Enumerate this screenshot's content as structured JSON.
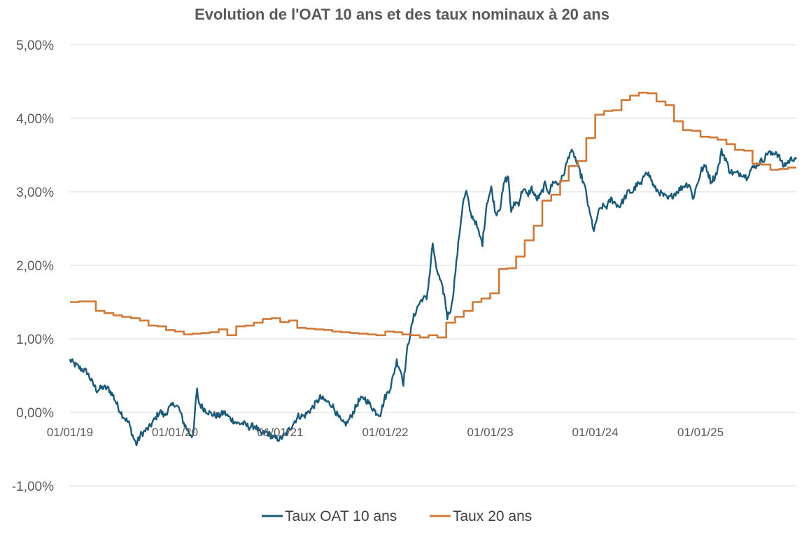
{
  "chart_data": {
    "type": "line",
    "title": "Evolution de l'OAT 10 ans et des taux nominaux à 20 ans",
    "xlabel": "",
    "ylabel": "",
    "x_range": [
      "2019-01-01",
      "2025-11-30"
    ],
    "ylim": [
      -1.0,
      5.0
    ],
    "y_ticks": [
      "-1,00%",
      "0,00%",
      "1,00%",
      "2,00%",
      "3,00%",
      "4,00%",
      "5,00%"
    ],
    "x_ticks": [
      {
        "date": "2019-01-01",
        "label": "01/01/19"
      },
      {
        "date": "2020-01-01",
        "label": "01/01/20"
      },
      {
        "date": "2021-01-01",
        "label": "01/01/21"
      },
      {
        "date": "2022-01-01",
        "label": "01/01/22"
      },
      {
        "date": "2023-01-01",
        "label": "01/01/23"
      },
      {
        "date": "2024-01-01",
        "label": "01/01/24"
      },
      {
        "date": "2025-01-01",
        "label": "01/01/25"
      }
    ],
    "grid": "horizontal",
    "legend_position": "bottom",
    "series": [
      {
        "name": "Taux OAT 10 ans",
        "color": "#1b5b79",
        "style": "daily",
        "points": [
          [
            "2019-01-01",
            0.71
          ],
          [
            "2019-01-15",
            0.66
          ],
          [
            "2019-02-05",
            0.6
          ],
          [
            "2019-03-01",
            0.55
          ],
          [
            "2019-03-20",
            0.4
          ],
          [
            "2019-04-05",
            0.3
          ],
          [
            "2019-04-25",
            0.34
          ],
          [
            "2019-05-15",
            0.32
          ],
          [
            "2019-06-01",
            0.22
          ],
          [
            "2019-06-20",
            0.05
          ],
          [
            "2019-07-05",
            -0.05
          ],
          [
            "2019-07-25",
            -0.15
          ],
          [
            "2019-08-10",
            -0.35
          ],
          [
            "2019-08-20",
            -0.43
          ],
          [
            "2019-09-05",
            -0.3
          ],
          [
            "2019-09-20",
            -0.25
          ],
          [
            "2019-10-05",
            -0.2
          ],
          [
            "2019-10-25",
            -0.08
          ],
          [
            "2019-11-10",
            0.02
          ],
          [
            "2019-11-25",
            -0.05
          ],
          [
            "2019-12-10",
            0.05
          ],
          [
            "2019-12-31",
            0.12
          ],
          [
            "2020-01-15",
            0.05
          ],
          [
            "2020-02-01",
            -0.15
          ],
          [
            "2020-02-20",
            -0.28
          ],
          [
            "2020-03-05",
            -0.32
          ],
          [
            "2020-03-12",
            0.1
          ],
          [
            "2020-03-18",
            0.3
          ],
          [
            "2020-03-25",
            0.12
          ],
          [
            "2020-04-10",
            0.05
          ],
          [
            "2020-05-05",
            -0.02
          ],
          [
            "2020-06-01",
            -0.05
          ],
          [
            "2020-06-20",
            0.0
          ],
          [
            "2020-07-10",
            -0.08
          ],
          [
            "2020-08-05",
            -0.15
          ],
          [
            "2020-08-25",
            -0.15
          ],
          [
            "2020-09-15",
            -0.2
          ],
          [
            "2020-10-05",
            -0.18
          ],
          [
            "2020-10-25",
            -0.3
          ],
          [
            "2020-11-15",
            -0.27
          ],
          [
            "2020-12-10",
            -0.35
          ],
          [
            "2020-12-31",
            -0.36
          ],
          [
            "2021-01-20",
            -0.3
          ],
          [
            "2021-02-15",
            -0.15
          ],
          [
            "2021-03-05",
            -0.05
          ],
          [
            "2021-03-25",
            -0.05
          ],
          [
            "2021-04-20",
            0.05
          ],
          [
            "2021-05-20",
            0.2
          ],
          [
            "2021-06-10",
            0.15
          ],
          [
            "2021-07-01",
            0.1
          ],
          [
            "2021-07-20",
            -0.05
          ],
          [
            "2021-08-05",
            -0.15
          ],
          [
            "2021-08-20",
            -0.15
          ],
          [
            "2021-09-05",
            -0.05
          ],
          [
            "2021-09-30",
            0.15
          ],
          [
            "2021-10-20",
            0.2
          ],
          [
            "2021-11-10",
            0.1
          ],
          [
            "2021-11-30",
            0.0
          ],
          [
            "2021-12-15",
            -0.02
          ],
          [
            "2021-12-31",
            0.2
          ],
          [
            "2022-01-20",
            0.35
          ],
          [
            "2022-02-10",
            0.7
          ],
          [
            "2022-02-25",
            0.55
          ],
          [
            "2022-03-05",
            0.4
          ],
          [
            "2022-03-20",
            0.9
          ],
          [
            "2022-04-10",
            1.3
          ],
          [
            "2022-04-25",
            1.45
          ],
          [
            "2022-05-10",
            1.55
          ],
          [
            "2022-05-25",
            1.55
          ],
          [
            "2022-06-05",
            1.9
          ],
          [
            "2022-06-15",
            2.3
          ],
          [
            "2022-06-25",
            2.0
          ],
          [
            "2022-07-10",
            1.8
          ],
          [
            "2022-07-25",
            1.6
          ],
          [
            "2022-08-05",
            1.3
          ],
          [
            "2022-08-20",
            1.45
          ],
          [
            "2022-08-30",
            1.8
          ],
          [
            "2022-09-15",
            2.4
          ],
          [
            "2022-09-28",
            2.85
          ],
          [
            "2022-10-10",
            3.0
          ],
          [
            "2022-10-25",
            2.7
          ],
          [
            "2022-11-10",
            2.6
          ],
          [
            "2022-11-25",
            2.4
          ],
          [
            "2022-12-05",
            2.3
          ],
          [
            "2022-12-20",
            2.85
          ],
          [
            "2023-01-05",
            3.05
          ],
          [
            "2023-01-20",
            2.7
          ],
          [
            "2023-02-05",
            2.8
          ],
          [
            "2023-02-20",
            3.15
          ],
          [
            "2023-03-05",
            3.2
          ],
          [
            "2023-03-15",
            2.7
          ],
          [
            "2023-03-25",
            2.85
          ],
          [
            "2023-04-10",
            2.85
          ],
          [
            "2023-04-25",
            3.05
          ],
          [
            "2023-05-10",
            2.95
          ],
          [
            "2023-05-25",
            3.05
          ],
          [
            "2023-06-10",
            2.9
          ],
          [
            "2023-06-25",
            2.95
          ],
          [
            "2023-07-10",
            3.1
          ],
          [
            "2023-07-25",
            3.0
          ],
          [
            "2023-08-10",
            3.15
          ],
          [
            "2023-08-25",
            3.1
          ],
          [
            "2023-09-10",
            3.2
          ],
          [
            "2023-09-25",
            3.4
          ],
          [
            "2023-10-05",
            3.55
          ],
          [
            "2023-10-20",
            3.5
          ],
          [
            "2023-11-05",
            3.3
          ],
          [
            "2023-11-15",
            3.2
          ],
          [
            "2023-11-30",
            3.0
          ],
          [
            "2023-12-10",
            2.75
          ],
          [
            "2023-12-20",
            2.6
          ],
          [
            "2023-12-28",
            2.45
          ],
          [
            "2024-01-10",
            2.7
          ],
          [
            "2024-01-25",
            2.8
          ],
          [
            "2024-02-10",
            2.8
          ],
          [
            "2024-02-25",
            2.9
          ],
          [
            "2024-03-10",
            2.85
          ],
          [
            "2024-03-25",
            2.8
          ],
          [
            "2024-04-10",
            2.9
          ],
          [
            "2024-04-25",
            3.0
          ],
          [
            "2024-05-10",
            3.0
          ],
          [
            "2024-05-25",
            3.1
          ],
          [
            "2024-06-10",
            3.1
          ],
          [
            "2024-06-25",
            3.3
          ],
          [
            "2024-07-10",
            3.2
          ],
          [
            "2024-07-25",
            3.05
          ],
          [
            "2024-08-10",
            3.0
          ],
          [
            "2024-08-25",
            2.95
          ],
          [
            "2024-09-10",
            2.9
          ],
          [
            "2024-09-25",
            2.95
          ],
          [
            "2024-10-10",
            3.0
          ],
          [
            "2024-10-25",
            3.05
          ],
          [
            "2024-11-10",
            3.1
          ],
          [
            "2024-11-25",
            3.1
          ],
          [
            "2024-12-05",
            2.9
          ],
          [
            "2024-12-20",
            3.1
          ],
          [
            "2025-01-05",
            3.3
          ],
          [
            "2025-01-20",
            3.35
          ],
          [
            "2025-02-05",
            3.15
          ],
          [
            "2025-02-20",
            3.2
          ],
          [
            "2025-03-05",
            3.35
          ],
          [
            "2025-03-15",
            3.55
          ],
          [
            "2025-03-30",
            3.45
          ],
          [
            "2025-04-10",
            3.3
          ],
          [
            "2025-04-25",
            3.25
          ],
          [
            "2025-05-10",
            3.25
          ],
          [
            "2025-05-25",
            3.25
          ],
          [
            "2025-06-10",
            3.2
          ],
          [
            "2025-06-25",
            3.3
          ],
          [
            "2025-07-10",
            3.35
          ],
          [
            "2025-07-25",
            3.4
          ],
          [
            "2025-08-10",
            3.45
          ],
          [
            "2025-08-25",
            3.55
          ],
          [
            "2025-09-05",
            3.5
          ],
          [
            "2025-09-20",
            3.55
          ],
          [
            "2025-10-05",
            3.45
          ],
          [
            "2025-10-15",
            3.35
          ],
          [
            "2025-10-30",
            3.4
          ],
          [
            "2025-11-15",
            3.45
          ],
          [
            "2025-11-30",
            3.47
          ]
        ]
      },
      {
        "name": "Taux 20 ans",
        "color": "#d07a3a",
        "style": "step",
        "points": [
          [
            "2019-01-01",
            1.5
          ],
          [
            "2019-02-01",
            1.51
          ],
          [
            "2019-04-01",
            1.38
          ],
          [
            "2019-05-01",
            1.35
          ],
          [
            "2019-06-01",
            1.32
          ],
          [
            "2019-07-01",
            1.3
          ],
          [
            "2019-08-01",
            1.28
          ],
          [
            "2019-09-01",
            1.25
          ],
          [
            "2019-10-01",
            1.18
          ],
          [
            "2019-11-01",
            1.17
          ],
          [
            "2019-12-01",
            1.12
          ],
          [
            "2020-01-01",
            1.1
          ],
          [
            "2020-02-01",
            1.06
          ],
          [
            "2020-03-01",
            1.07
          ],
          [
            "2020-04-01",
            1.08
          ],
          [
            "2020-05-01",
            1.09
          ],
          [
            "2020-06-01",
            1.13
          ],
          [
            "2020-07-01",
            1.05
          ],
          [
            "2020-08-01",
            1.17
          ],
          [
            "2020-09-01",
            1.18
          ],
          [
            "2020-10-01",
            1.22
          ],
          [
            "2020-11-01",
            1.27
          ],
          [
            "2020-12-01",
            1.28
          ],
          [
            "2021-01-01",
            1.23
          ],
          [
            "2021-02-01",
            1.25
          ],
          [
            "2021-03-01",
            1.15
          ],
          [
            "2021-04-01",
            1.14
          ],
          [
            "2021-05-01",
            1.13
          ],
          [
            "2021-06-01",
            1.12
          ],
          [
            "2021-07-01",
            1.1
          ],
          [
            "2021-08-01",
            1.09
          ],
          [
            "2021-09-01",
            1.08
          ],
          [
            "2021-10-01",
            1.07
          ],
          [
            "2021-11-01",
            1.06
          ],
          [
            "2021-12-01",
            1.05
          ],
          [
            "2022-01-01",
            1.1
          ],
          [
            "2022-02-01",
            1.09
          ],
          [
            "2022-03-01",
            1.06
          ],
          [
            "2022-04-01",
            1.05
          ],
          [
            "2022-05-01",
            1.02
          ],
          [
            "2022-06-01",
            1.05
          ],
          [
            "2022-07-01",
            1.02
          ],
          [
            "2022-08-01",
            1.22
          ],
          [
            "2022-09-01",
            1.3
          ],
          [
            "2022-10-01",
            1.38
          ],
          [
            "2022-11-01",
            1.5
          ],
          [
            "2022-12-01",
            1.55
          ],
          [
            "2023-01-01",
            1.62
          ],
          [
            "2023-02-01",
            1.95
          ],
          [
            "2023-03-01",
            1.96
          ],
          [
            "2023-04-01",
            2.12
          ],
          [
            "2023-05-01",
            2.34
          ],
          [
            "2023-06-01",
            2.54
          ],
          [
            "2023-07-01",
            2.88
          ],
          [
            "2023-08-01",
            2.96
          ],
          [
            "2023-09-01",
            3.15
          ],
          [
            "2023-10-01",
            3.35
          ],
          [
            "2023-11-01",
            3.42
          ],
          [
            "2023-12-01",
            3.73
          ],
          [
            "2024-01-01",
            4.05
          ],
          [
            "2024-02-01",
            4.1
          ],
          [
            "2024-03-01",
            4.11
          ],
          [
            "2024-04-01",
            4.25
          ],
          [
            "2024-05-01",
            4.31
          ],
          [
            "2024-06-01",
            4.35
          ],
          [
            "2024-07-01",
            4.34
          ],
          [
            "2024-08-01",
            4.23
          ],
          [
            "2024-09-01",
            4.18
          ],
          [
            "2024-10-01",
            3.96
          ],
          [
            "2024-11-01",
            3.84
          ],
          [
            "2024-12-01",
            3.83
          ],
          [
            "2025-01-01",
            3.75
          ],
          [
            "2025-02-01",
            3.74
          ],
          [
            "2025-03-01",
            3.71
          ],
          [
            "2025-04-01",
            3.65
          ],
          [
            "2025-05-01",
            3.57
          ],
          [
            "2025-06-01",
            3.56
          ],
          [
            "2025-07-01",
            3.38
          ],
          [
            "2025-08-01",
            3.37
          ],
          [
            "2025-09-01",
            3.3
          ],
          [
            "2025-10-01",
            3.31
          ],
          [
            "2025-11-01",
            3.33
          ],
          [
            "2025-11-30",
            3.33
          ]
        ]
      }
    ]
  }
}
